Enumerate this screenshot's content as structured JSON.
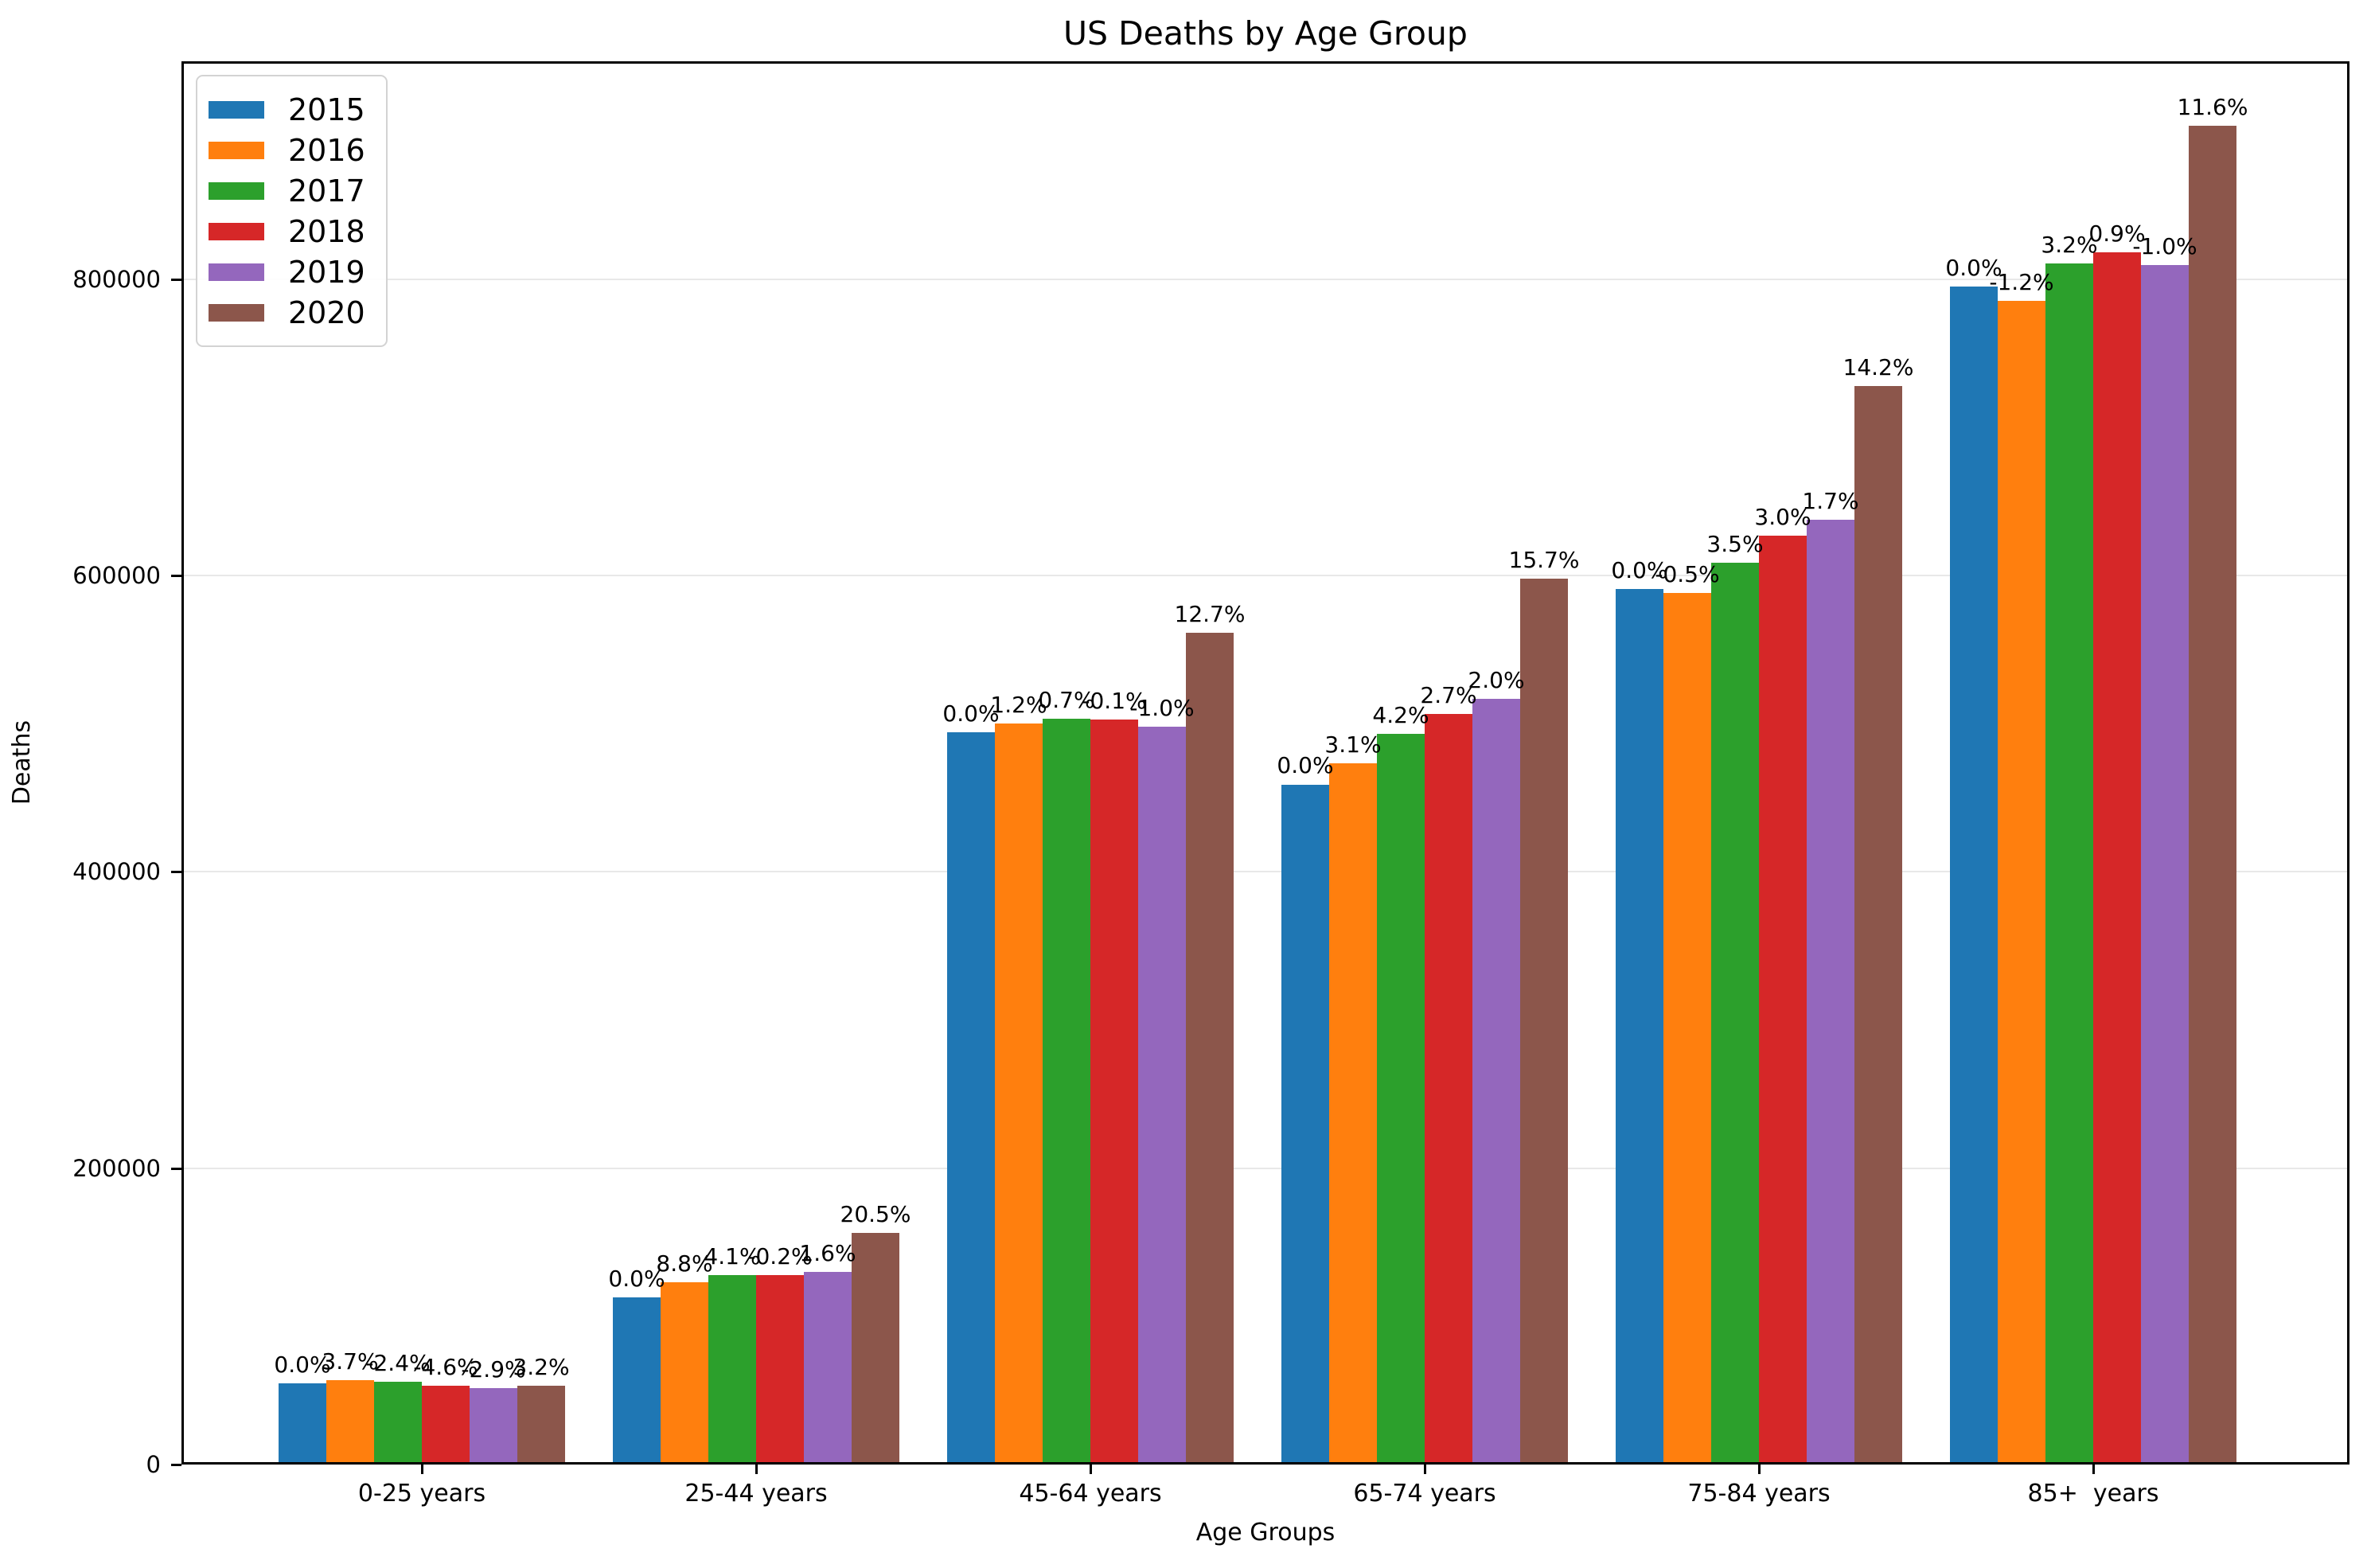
{
  "chart_data": {
    "type": "bar",
    "title": "US Deaths by Age Group",
    "xlabel": "Age Groups",
    "ylabel": "Deaths",
    "categories": [
      "0-25 years",
      "25-44 years",
      "45-64 years",
      "65-74 years",
      "75-84 years",
      "85+  years"
    ],
    "yticks": [
      0,
      200000,
      400000,
      600000,
      800000
    ],
    "ylim": [
      0,
      947000
    ],
    "grid": true,
    "legend_position": "upper left",
    "series": [
      {
        "name": "2015",
        "color": "#1f77b4",
        "values": [
          55000,
          113000,
          494000,
          459000,
          591000,
          795000
        ],
        "labels": [
          "0.0%",
          "0.0%",
          "0.0%",
          "0.0%",
          "0.0%",
          "0.0%"
        ]
      },
      {
        "name": "2016",
        "color": "#ff7f0e",
        "values": [
          57000,
          122900,
          499900,
          473200,
          588000,
          785500
        ],
        "labels": [
          "3.7%",
          "8.8%",
          "1.2%",
          "3.1%",
          "-0.5%",
          "-1.2%"
        ]
      },
      {
        "name": "2017",
        "color": "#2ca02c",
        "values": [
          55700,
          128000,
          503400,
          493100,
          608600,
          810600
        ],
        "labels": [
          "-2.4%",
          "4.1%",
          "0.7%",
          "4.2%",
          "3.5%",
          "3.2%"
        ]
      },
      {
        "name": "2018",
        "color": "#d62728",
        "values": [
          53100,
          127700,
          502900,
          506400,
          626900,
          817900
        ],
        "labels": [
          "-4.6%",
          "-0.2%",
          "-0.1%",
          "2.7%",
          "3.0%",
          "0.9%"
        ]
      },
      {
        "name": "2019",
        "color": "#9467bd",
        "values": [
          51600,
          129800,
          497900,
          516500,
          637500,
          809700
        ],
        "labels": [
          "-2.9%",
          "1.6%",
          "-1.0%",
          "2.0%",
          "1.7%",
          "-1.0%"
        ]
      },
      {
        "name": "2020",
        "color": "#8c564b",
        "values": [
          53200,
          156400,
          561100,
          597600,
          728100,
          903600
        ],
        "labels": [
          "3.2%",
          "20.5%",
          "12.7%",
          "15.7%",
          "14.2%",
          "11.6%"
        ]
      }
    ]
  }
}
